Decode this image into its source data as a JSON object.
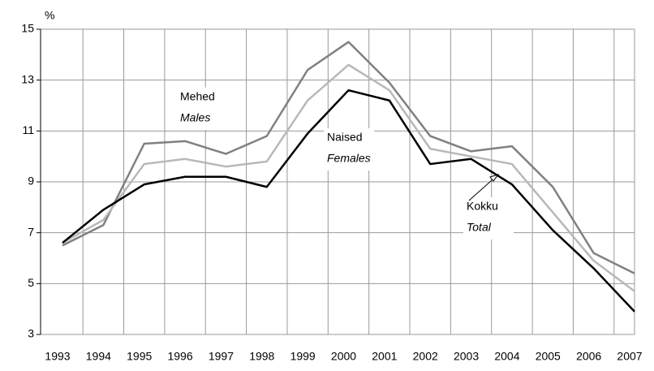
{
  "chart_data": {
    "type": "line",
    "y_label": "%",
    "categories": [
      "1993",
      "1994",
      "1995",
      "1996",
      "1997",
      "1998",
      "1999",
      "2000",
      "2001",
      "2002",
      "2003",
      "2004",
      "2005",
      "2006",
      "2007"
    ],
    "series": [
      {
        "name": "Mehed Males",
        "color": "#808080",
        "values": [
          6.5,
          7.3,
          10.5,
          10.6,
          10.1,
          10.8,
          13.4,
          14.5,
          12.9,
          10.8,
          10.2,
          10.4,
          8.8,
          6.2,
          5.4
        ]
      },
      {
        "name": "Kokku Total",
        "color": "#b8b8b8",
        "values": [
          6.6,
          7.5,
          9.7,
          9.9,
          9.6,
          9.8,
          12.2,
          13.6,
          12.6,
          10.3,
          10.0,
          9.7,
          7.8,
          5.9,
          4.7
        ]
      },
      {
        "name": "Naised Females",
        "color": "#000000",
        "values": [
          6.6,
          7.9,
          8.9,
          9.2,
          9.2,
          8.8,
          10.9,
          12.6,
          12.2,
          9.7,
          9.9,
          8.9,
          7.1,
          5.6,
          3.9
        ]
      }
    ],
    "annotations": [
      {
        "label": "Mehed",
        "sublabel": "Males"
      },
      {
        "label": "Kokku",
        "sublabel": "Total"
      },
      {
        "label": "Naised",
        "sublabel": "Females"
      }
    ],
    "ylim": [
      3,
      15
    ],
    "yticks": [
      3,
      5,
      7,
      9,
      11,
      13,
      15
    ],
    "grid": true
  }
}
